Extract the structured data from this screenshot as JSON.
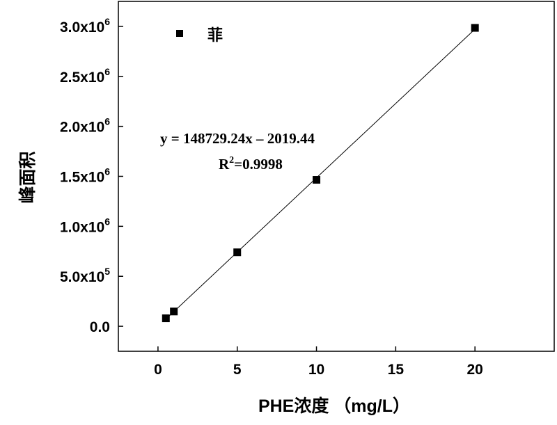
{
  "chart_data": {
    "type": "scatter",
    "xlabel": "PHE浓度 （mg/L）",
    "ylabel": "峰面积",
    "xlim": [
      -2.5,
      25
    ],
    "ylim": [
      -250000,
      3250000
    ],
    "x_ticks": [
      {
        "value": 0,
        "label": "0"
      },
      {
        "value": 5,
        "label": "5"
      },
      {
        "value": 10,
        "label": "10"
      },
      {
        "value": 15,
        "label": "15"
      },
      {
        "value": 20,
        "label": "20"
      }
    ],
    "y_ticks": [
      {
        "value": 0,
        "mantissa": "0.0",
        "exp": ""
      },
      {
        "value": 500000,
        "mantissa": "5.0x10",
        "exp": "5"
      },
      {
        "value": 1000000,
        "mantissa": "1.0x10",
        "exp": "6"
      },
      {
        "value": 1500000,
        "mantissa": "1.5x10",
        "exp": "6"
      },
      {
        "value": 2000000,
        "mantissa": "2.0x10",
        "exp": "6"
      },
      {
        "value": 2500000,
        "mantissa": "2.5x10",
        "exp": "6"
      },
      {
        "value": 3000000,
        "mantissa": "3.0x10",
        "exp": "6"
      }
    ],
    "series": [
      {
        "name": "菲",
        "marker": "square",
        "color": "#000000",
        "points": [
          {
            "x": 0.5,
            "y": 80000
          },
          {
            "x": 1,
            "y": 148000
          },
          {
            "x": 5,
            "y": 740000
          },
          {
            "x": 10,
            "y": 1465000
          },
          {
            "x": 20,
            "y": 2985000
          }
        ]
      }
    ],
    "fit_line": {
      "slope": 148729.24,
      "intercept": -2019.44,
      "x_range": [
        0.5,
        20
      ]
    },
    "annotations": {
      "equation": "y = 148729.24x – 2019.44",
      "r2_prefix": "R",
      "r2_sup": "2",
      "r2_value": "=0.9998"
    },
    "legend_position": "top-left",
    "grid": false
  }
}
